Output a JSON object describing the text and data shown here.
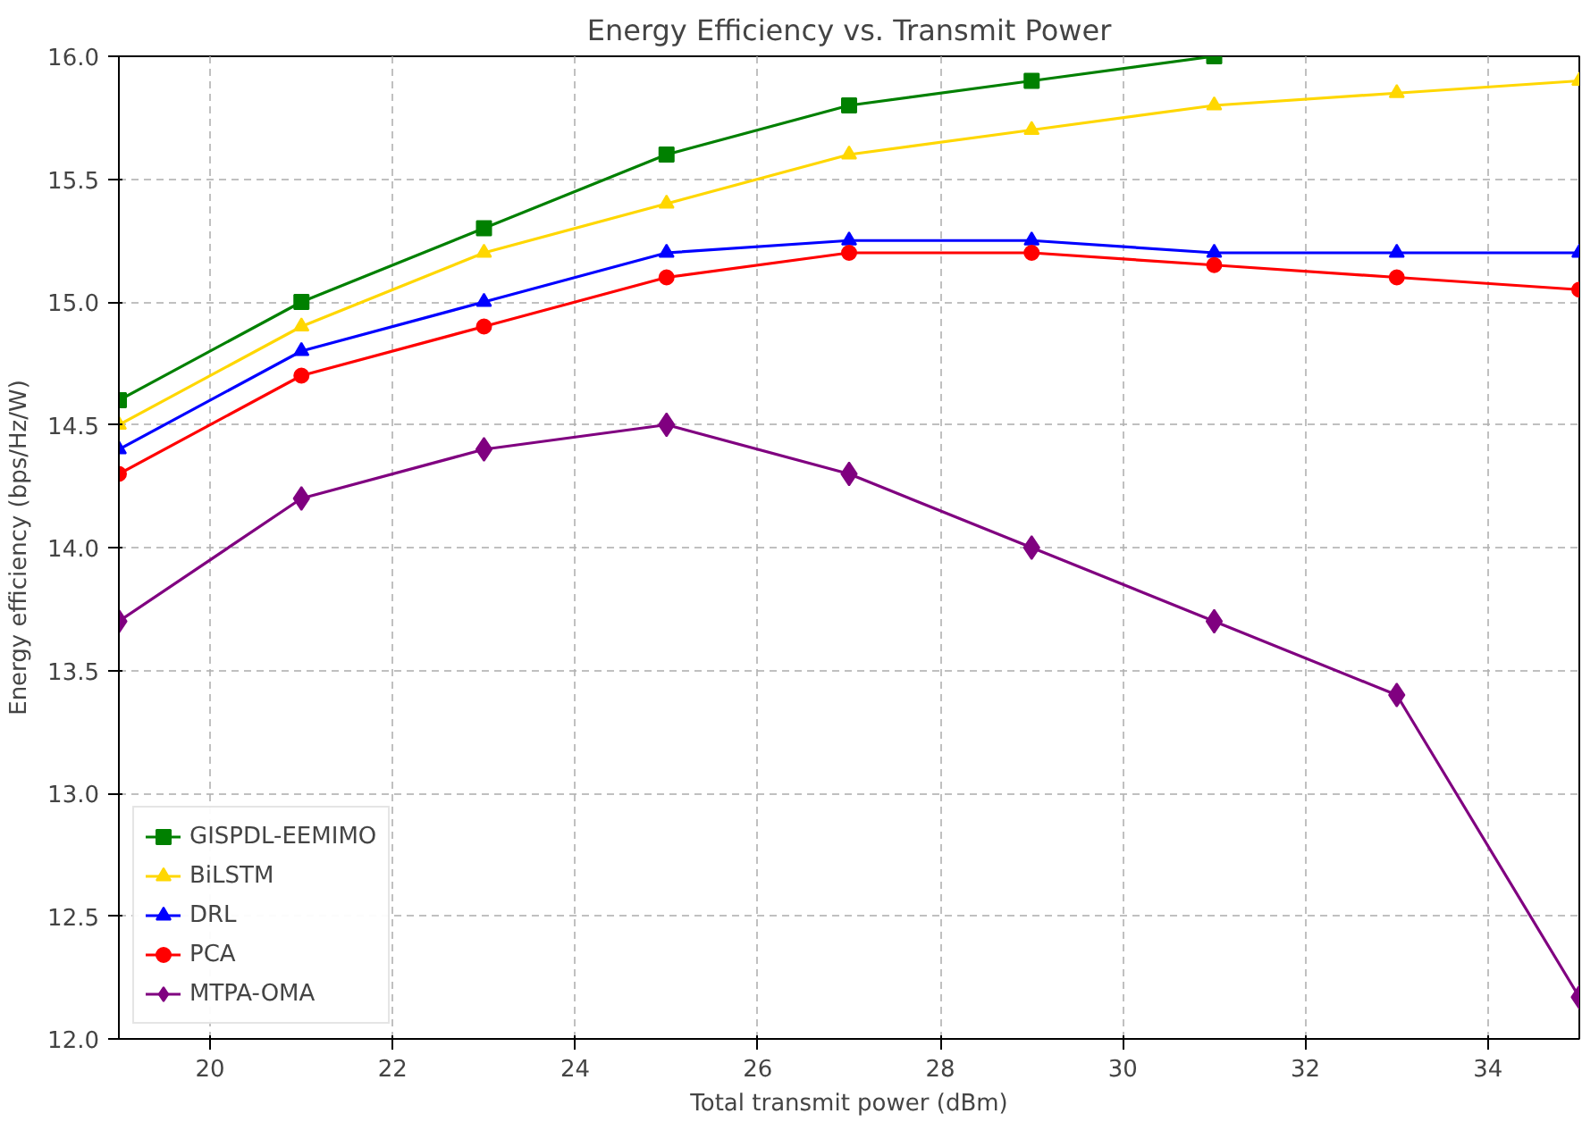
{
  "chart_data": {
    "type": "line",
    "title": "Energy Efficiency vs. Transmit Power",
    "xlabel": "Total transmit power (dBm)",
    "ylabel": "Energy efficiency (bps/Hz/W)",
    "x": [
      19,
      21,
      23,
      25,
      27,
      29,
      31,
      33,
      35
    ],
    "series": [
      {
        "name": "GISPDL-EEMIMO",
        "color": "#008000",
        "marker": "square",
        "values": [
          14.6,
          15.0,
          15.3,
          15.6,
          15.8,
          15.9,
          16.0,
          null,
          null
        ]
      },
      {
        "name": "BiLSTM",
        "color": "#ffd700",
        "marker": "triangle",
        "values": [
          14.5,
          14.9,
          15.2,
          15.4,
          15.6,
          15.7,
          15.8,
          15.85,
          15.9
        ]
      },
      {
        "name": "DRL",
        "color": "#0000ff",
        "marker": "triangle",
        "values": [
          14.4,
          14.8,
          15.0,
          15.2,
          15.25,
          15.25,
          15.2,
          15.2,
          15.2
        ]
      },
      {
        "name": "PCA",
        "color": "#ff0000",
        "marker": "circle",
        "values": [
          14.3,
          14.7,
          14.9,
          15.1,
          15.2,
          15.2,
          15.15,
          15.1,
          15.05
        ]
      },
      {
        "name": "MTPA-OMA",
        "color": "#800080",
        "marker": "diamond",
        "values": [
          13.7,
          14.2,
          14.4,
          14.5,
          14.3,
          14.0,
          13.7,
          13.4,
          12.17
        ]
      }
    ],
    "xlim": [
      19,
      35
    ],
    "ylim": [
      12.0,
      16.0
    ],
    "xticks": [
      20,
      22,
      24,
      26,
      28,
      30,
      32,
      34
    ],
    "yticks": [
      {
        "value": 12.0,
        "label": "12.0"
      },
      {
        "value": 12.5,
        "label": "12.5"
      },
      {
        "value": 13.0,
        "label": "13.0"
      },
      {
        "value": 13.5,
        "label": "13.5"
      },
      {
        "value": 14.0,
        "label": "14.0"
      },
      {
        "value": 14.5,
        "label": "14.5"
      },
      {
        "value": 15.0,
        "label": "15.0"
      },
      {
        "value": 15.5,
        "label": "15.5"
      },
      {
        "value": 16.0,
        "label": "16.0"
      }
    ],
    "grid": true,
    "line_style": "solid",
    "legend": "bottom left"
  }
}
